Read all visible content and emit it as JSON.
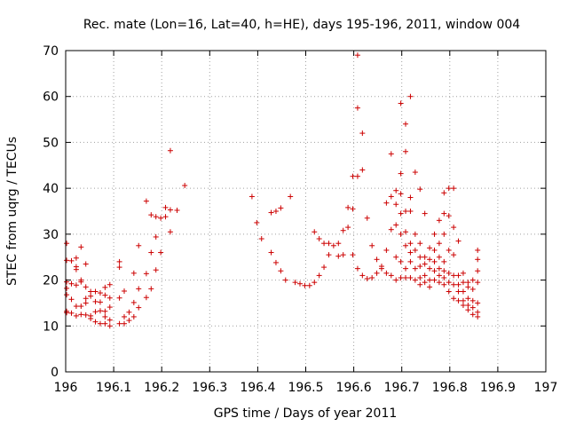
{
  "chart_data": {
    "type": "scatter",
    "title": "Rec. mate (Lon=16, Lat=40, h=HE), days 195-196, 2011, window 004",
    "xlabel": "GPS time / Days of year 2011",
    "ylabel": "STEC from uqrg / TECUs",
    "xlim": [
      196,
      197
    ],
    "ylim": [
      0,
      70
    ],
    "x_ticks": [
      196,
      196.1,
      196.2,
      196.3,
      196.4,
      196.5,
      196.6,
      196.7,
      196.8,
      196.9,
      197
    ],
    "x_tick_labels": [
      "196",
      "196.1",
      "196.2",
      "196.3",
      "196.4",
      "196.5",
      "196.6",
      "196.7",
      "196.8",
      "196.9",
      "197"
    ],
    "y_ticks": [
      0,
      10,
      20,
      30,
      40,
      50,
      60,
      70
    ],
    "y_tick_labels": [
      "0",
      "10",
      "20",
      "30",
      "40",
      "50",
      "60",
      "70"
    ],
    "grid": true,
    "marker": "plus",
    "color": "#cc0000",
    "points": [
      [
        196.002,
        28.0
      ],
      [
        196.002,
        24.3
      ],
      [
        196.002,
        19.6
      ],
      [
        196.002,
        18.2
      ],
      [
        196.002,
        16.8
      ],
      [
        196.002,
        13.2
      ],
      [
        196.002,
        12.9
      ],
      [
        196.012,
        24.2
      ],
      [
        196.012,
        19.2
      ],
      [
        196.012,
        15.8
      ],
      [
        196.012,
        12.8
      ],
      [
        196.022,
        24.8
      ],
      [
        196.022,
        22.9
      ],
      [
        196.022,
        22.3
      ],
      [
        196.022,
        18.9
      ],
      [
        196.022,
        14.3
      ],
      [
        196.022,
        12.2
      ],
      [
        196.032,
        27.2
      ],
      [
        196.032,
        20.0
      ],
      [
        196.032,
        19.6
      ],
      [
        196.032,
        14.3
      ],
      [
        196.032,
        12.5
      ],
      [
        196.042,
        23.5
      ],
      [
        196.042,
        18.5
      ],
      [
        196.042,
        16.0
      ],
      [
        196.042,
        15.0
      ],
      [
        196.042,
        12.4
      ],
      [
        196.052,
        17.5
      ],
      [
        196.052,
        16.5
      ],
      [
        196.052,
        12.2
      ],
      [
        196.052,
        11.6
      ],
      [
        196.062,
        17.5
      ],
      [
        196.062,
        15.3
      ],
      [
        196.062,
        13.1
      ],
      [
        196.062,
        10.9
      ],
      [
        196.072,
        17.2
      ],
      [
        196.072,
        15.2
      ],
      [
        196.072,
        13.3
      ],
      [
        196.072,
        10.5
      ],
      [
        196.082,
        18.4
      ],
      [
        196.082,
        16.7
      ],
      [
        196.082,
        13.2
      ],
      [
        196.082,
        12.0
      ],
      [
        196.082,
        10.5
      ],
      [
        196.092,
        19.0
      ],
      [
        196.092,
        16.1
      ],
      [
        196.092,
        14.1
      ],
      [
        196.092,
        11.3
      ],
      [
        196.092,
        10.0
      ],
      [
        196.112,
        24.0
      ],
      [
        196.112,
        22.8
      ],
      [
        196.112,
        16.1
      ],
      [
        196.112,
        10.5
      ],
      [
        196.122,
        17.6
      ],
      [
        196.122,
        12.0
      ],
      [
        196.122,
        10.5
      ],
      [
        196.132,
        13.0
      ],
      [
        196.132,
        11.2
      ],
      [
        196.142,
        21.5
      ],
      [
        196.142,
        15.1
      ],
      [
        196.142,
        12.0
      ],
      [
        196.152,
        27.5
      ],
      [
        196.152,
        18.1
      ],
      [
        196.152,
        14.0
      ],
      [
        196.168,
        37.2
      ],
      [
        196.168,
        21.4
      ],
      [
        196.168,
        16.2
      ],
      [
        196.178,
        34.2
      ],
      [
        196.178,
        26.0
      ],
      [
        196.178,
        18.1
      ],
      [
        196.188,
        33.8
      ],
      [
        196.188,
        29.4
      ],
      [
        196.188,
        22.2
      ],
      [
        196.198,
        33.5
      ],
      [
        196.198,
        26.0
      ],
      [
        196.208,
        35.8
      ],
      [
        196.208,
        33.8
      ],
      [
        196.218,
        48.2
      ],
      [
        196.218,
        35.3
      ],
      [
        196.218,
        30.5
      ],
      [
        196.232,
        35.2
      ],
      [
        196.248,
        40.6
      ],
      [
        196.388,
        38.2
      ],
      [
        196.398,
        32.5
      ],
      [
        196.408,
        29.0
      ],
      [
        196.428,
        26.0
      ],
      [
        196.428,
        34.7
      ],
      [
        196.438,
        35.0
      ],
      [
        196.438,
        23.8
      ],
      [
        196.448,
        35.7
      ],
      [
        196.448,
        22.0
      ],
      [
        196.458,
        20.0
      ],
      [
        196.468,
        38.2
      ],
      [
        196.478,
        19.5
      ],
      [
        196.488,
        19.2
      ],
      [
        196.498,
        18.8
      ],
      [
        196.508,
        18.8
      ],
      [
        196.518,
        30.5
      ],
      [
        196.518,
        19.5
      ],
      [
        196.528,
        29.0
      ],
      [
        196.528,
        21.0
      ],
      [
        196.538,
        28.0
      ],
      [
        196.538,
        22.8
      ],
      [
        196.548,
        28.0
      ],
      [
        196.548,
        25.5
      ],
      [
        196.558,
        27.5
      ],
      [
        196.568,
        28.0
      ],
      [
        196.568,
        25.2
      ],
      [
        196.578,
        30.8
      ],
      [
        196.578,
        25.5
      ],
      [
        196.588,
        31.5
      ],
      [
        196.588,
        35.8
      ],
      [
        196.598,
        35.5
      ],
      [
        196.598,
        25.5
      ],
      [
        196.598,
        42.6
      ],
      [
        196.608,
        69.0
      ],
      [
        196.608,
        57.5
      ],
      [
        196.608,
        42.6
      ],
      [
        196.608,
        22.5
      ],
      [
        196.618,
        52.0
      ],
      [
        196.618,
        44.0
      ],
      [
        196.618,
        21.0
      ],
      [
        196.628,
        33.5
      ],
      [
        196.628,
        20.3
      ],
      [
        196.638,
        27.5
      ],
      [
        196.638,
        20.5
      ],
      [
        196.648,
        24.5
      ],
      [
        196.648,
        21.5
      ],
      [
        196.658,
        23.0
      ],
      [
        196.658,
        22.5
      ],
      [
        196.668,
        36.8
      ],
      [
        196.668,
        26.5
      ],
      [
        196.668,
        21.5
      ],
      [
        196.678,
        47.5
      ],
      [
        196.678,
        38.2
      ],
      [
        196.678,
        31.0
      ],
      [
        196.678,
        21.0
      ],
      [
        196.688,
        39.5
      ],
      [
        196.688,
        36.5
      ],
      [
        196.688,
        32.0
      ],
      [
        196.688,
        25.0
      ],
      [
        196.688,
        20.0
      ],
      [
        196.698,
        58.5
      ],
      [
        196.698,
        43.2
      ],
      [
        196.698,
        38.8
      ],
      [
        196.698,
        34.5
      ],
      [
        196.698,
        30.0
      ],
      [
        196.698,
        24.0
      ],
      [
        196.698,
        20.5
      ],
      [
        196.708,
        54.0
      ],
      [
        196.708,
        48.0
      ],
      [
        196.708,
        35.0
      ],
      [
        196.708,
        30.5
      ],
      [
        196.708,
        27.5
      ],
      [
        196.708,
        22.5
      ],
      [
        196.708,
        20.5
      ],
      [
        196.718,
        60.0
      ],
      [
        196.718,
        38.0
      ],
      [
        196.718,
        35.0
      ],
      [
        196.718,
        28.0
      ],
      [
        196.718,
        26.0
      ],
      [
        196.718,
        24.0
      ],
      [
        196.718,
        20.5
      ],
      [
        196.728,
        43.5
      ],
      [
        196.728,
        30.0
      ],
      [
        196.728,
        26.5
      ],
      [
        196.728,
        22.5
      ],
      [
        196.728,
        20.0
      ],
      [
        196.738,
        39.8
      ],
      [
        196.738,
        28.0
      ],
      [
        196.738,
        25.0
      ],
      [
        196.738,
        23.0
      ],
      [
        196.738,
        20.5
      ],
      [
        196.738,
        19.0
      ],
      [
        196.748,
        34.5
      ],
      [
        196.748,
        25.0
      ],
      [
        196.748,
        23.5
      ],
      [
        196.748,
        21.0
      ],
      [
        196.748,
        19.5
      ],
      [
        196.758,
        27.0
      ],
      [
        196.758,
        24.5
      ],
      [
        196.758,
        22.5
      ],
      [
        196.758,
        20.0
      ],
      [
        196.758,
        18.5
      ],
      [
        196.768,
        30.0
      ],
      [
        196.768,
        26.5
      ],
      [
        196.768,
        24.0
      ],
      [
        196.768,
        22.0
      ],
      [
        196.768,
        20.0
      ],
      [
        196.778,
        33.0
      ],
      [
        196.778,
        28.0
      ],
      [
        196.778,
        25.0
      ],
      [
        196.778,
        22.5
      ],
      [
        196.778,
        21.0
      ],
      [
        196.778,
        19.5
      ],
      [
        196.788,
        39.0
      ],
      [
        196.788,
        34.5
      ],
      [
        196.788,
        30.0
      ],
      [
        196.788,
        24.0
      ],
      [
        196.788,
        22.0
      ],
      [
        196.788,
        20.5
      ],
      [
        196.788,
        19.0
      ],
      [
        196.798,
        40.0
      ],
      [
        196.798,
        34.0
      ],
      [
        196.798,
        26.5
      ],
      [
        196.798,
        21.5
      ],
      [
        196.798,
        19.5
      ],
      [
        196.798,
        17.5
      ],
      [
        196.808,
        40.0
      ],
      [
        196.808,
        31.5
      ],
      [
        196.808,
        25.5
      ],
      [
        196.808,
        21.0
      ],
      [
        196.808,
        19.0
      ],
      [
        196.808,
        16.0
      ],
      [
        196.818,
        28.5
      ],
      [
        196.818,
        21.0
      ],
      [
        196.818,
        19.0
      ],
      [
        196.818,
        17.5
      ],
      [
        196.818,
        15.5
      ],
      [
        196.828,
        21.5
      ],
      [
        196.828,
        19.5
      ],
      [
        196.828,
        17.5
      ],
      [
        196.828,
        15.5
      ],
      [
        196.828,
        14.5
      ],
      [
        196.838,
        19.5
      ],
      [
        196.838,
        18.5
      ],
      [
        196.838,
        16.0
      ],
      [
        196.838,
        14.5
      ],
      [
        196.838,
        13.5
      ],
      [
        196.848,
        20.0
      ],
      [
        196.848,
        18.0
      ],
      [
        196.848,
        15.5
      ],
      [
        196.848,
        14.0
      ],
      [
        196.848,
        12.5
      ],
      [
        196.858,
        26.5
      ],
      [
        196.858,
        24.5
      ],
      [
        196.858,
        22.0
      ],
      [
        196.858,
        19.5
      ],
      [
        196.858,
        15.0
      ],
      [
        196.858,
        13.0
      ],
      [
        196.858,
        12.0
      ]
    ]
  }
}
